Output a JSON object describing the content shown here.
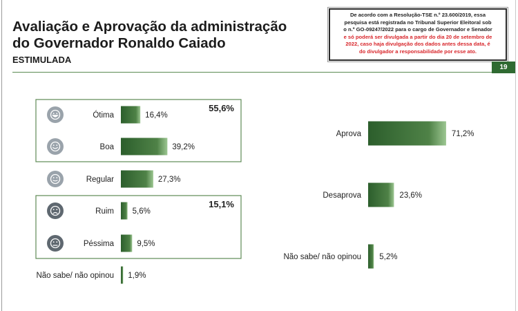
{
  "header": {
    "title_line1": "Avaliação e Aprovação da administração",
    "title_line2": "do Governador Ronaldo Caiado",
    "subtitle": "ESTIMULADA",
    "page_number": "19"
  },
  "legal_notice": {
    "line1": "De acordo com a Resolução-TSE n.º 23.600/2019, essa",
    "line2": "pesquisa está registrada no Tribunal Superior Eleitoral sob",
    "line3": "o n.º GO-09247/2022 para o cargo de Governador e Senador",
    "line4_red": "e só poderá ser divulgada a partir do dia 20 de setembro de",
    "line5_red": "2022, caso haja divulgação dos dados antes dessa data, é",
    "line6_red": "do divulgador a responsabilidade por esse ato."
  },
  "colors": {
    "bar_dark": "#2c5e2c",
    "bar_light": "#8fbc84",
    "box_border": "#5e8a55",
    "positive_icon": "#9aa3ab",
    "negative_icon": "#5f6870"
  },
  "chart_data": [
    {
      "type": "bar",
      "orientation": "horizontal",
      "categories": [
        "Ótima",
        "Boa",
        "Regular",
        "Ruim",
        "Péssima",
        "Não sabe/ não opinou"
      ],
      "values": [
        16.4,
        39.2,
        27.3,
        5.6,
        9.5,
        1.9
      ],
      "value_labels": [
        "16,4%",
        "39,2%",
        "27,3%",
        "5,6%",
        "9,5%",
        "1,9%"
      ],
      "icons": [
        "very-happy-face-icon",
        "happy-face-icon",
        "neutral-face-icon",
        "sad-face-icon",
        "very-sad-face-icon",
        ""
      ],
      "groups": [
        {
          "members": [
            "Ótima",
            "Boa"
          ],
          "total_label": "55,6%"
        },
        {
          "members": [
            "Ruim",
            "Péssima"
          ],
          "total_label": "15,1%"
        }
      ],
      "xlim": [
        0,
        100
      ]
    },
    {
      "type": "bar",
      "orientation": "horizontal",
      "categories": [
        "Aprova",
        "Desaprova",
        "Não sabe/ não opinou"
      ],
      "values": [
        71.2,
        23.6,
        5.2
      ],
      "value_labels": [
        "71,2%",
        "23,6%",
        "5,2%"
      ],
      "xlim": [
        0,
        100
      ]
    }
  ]
}
